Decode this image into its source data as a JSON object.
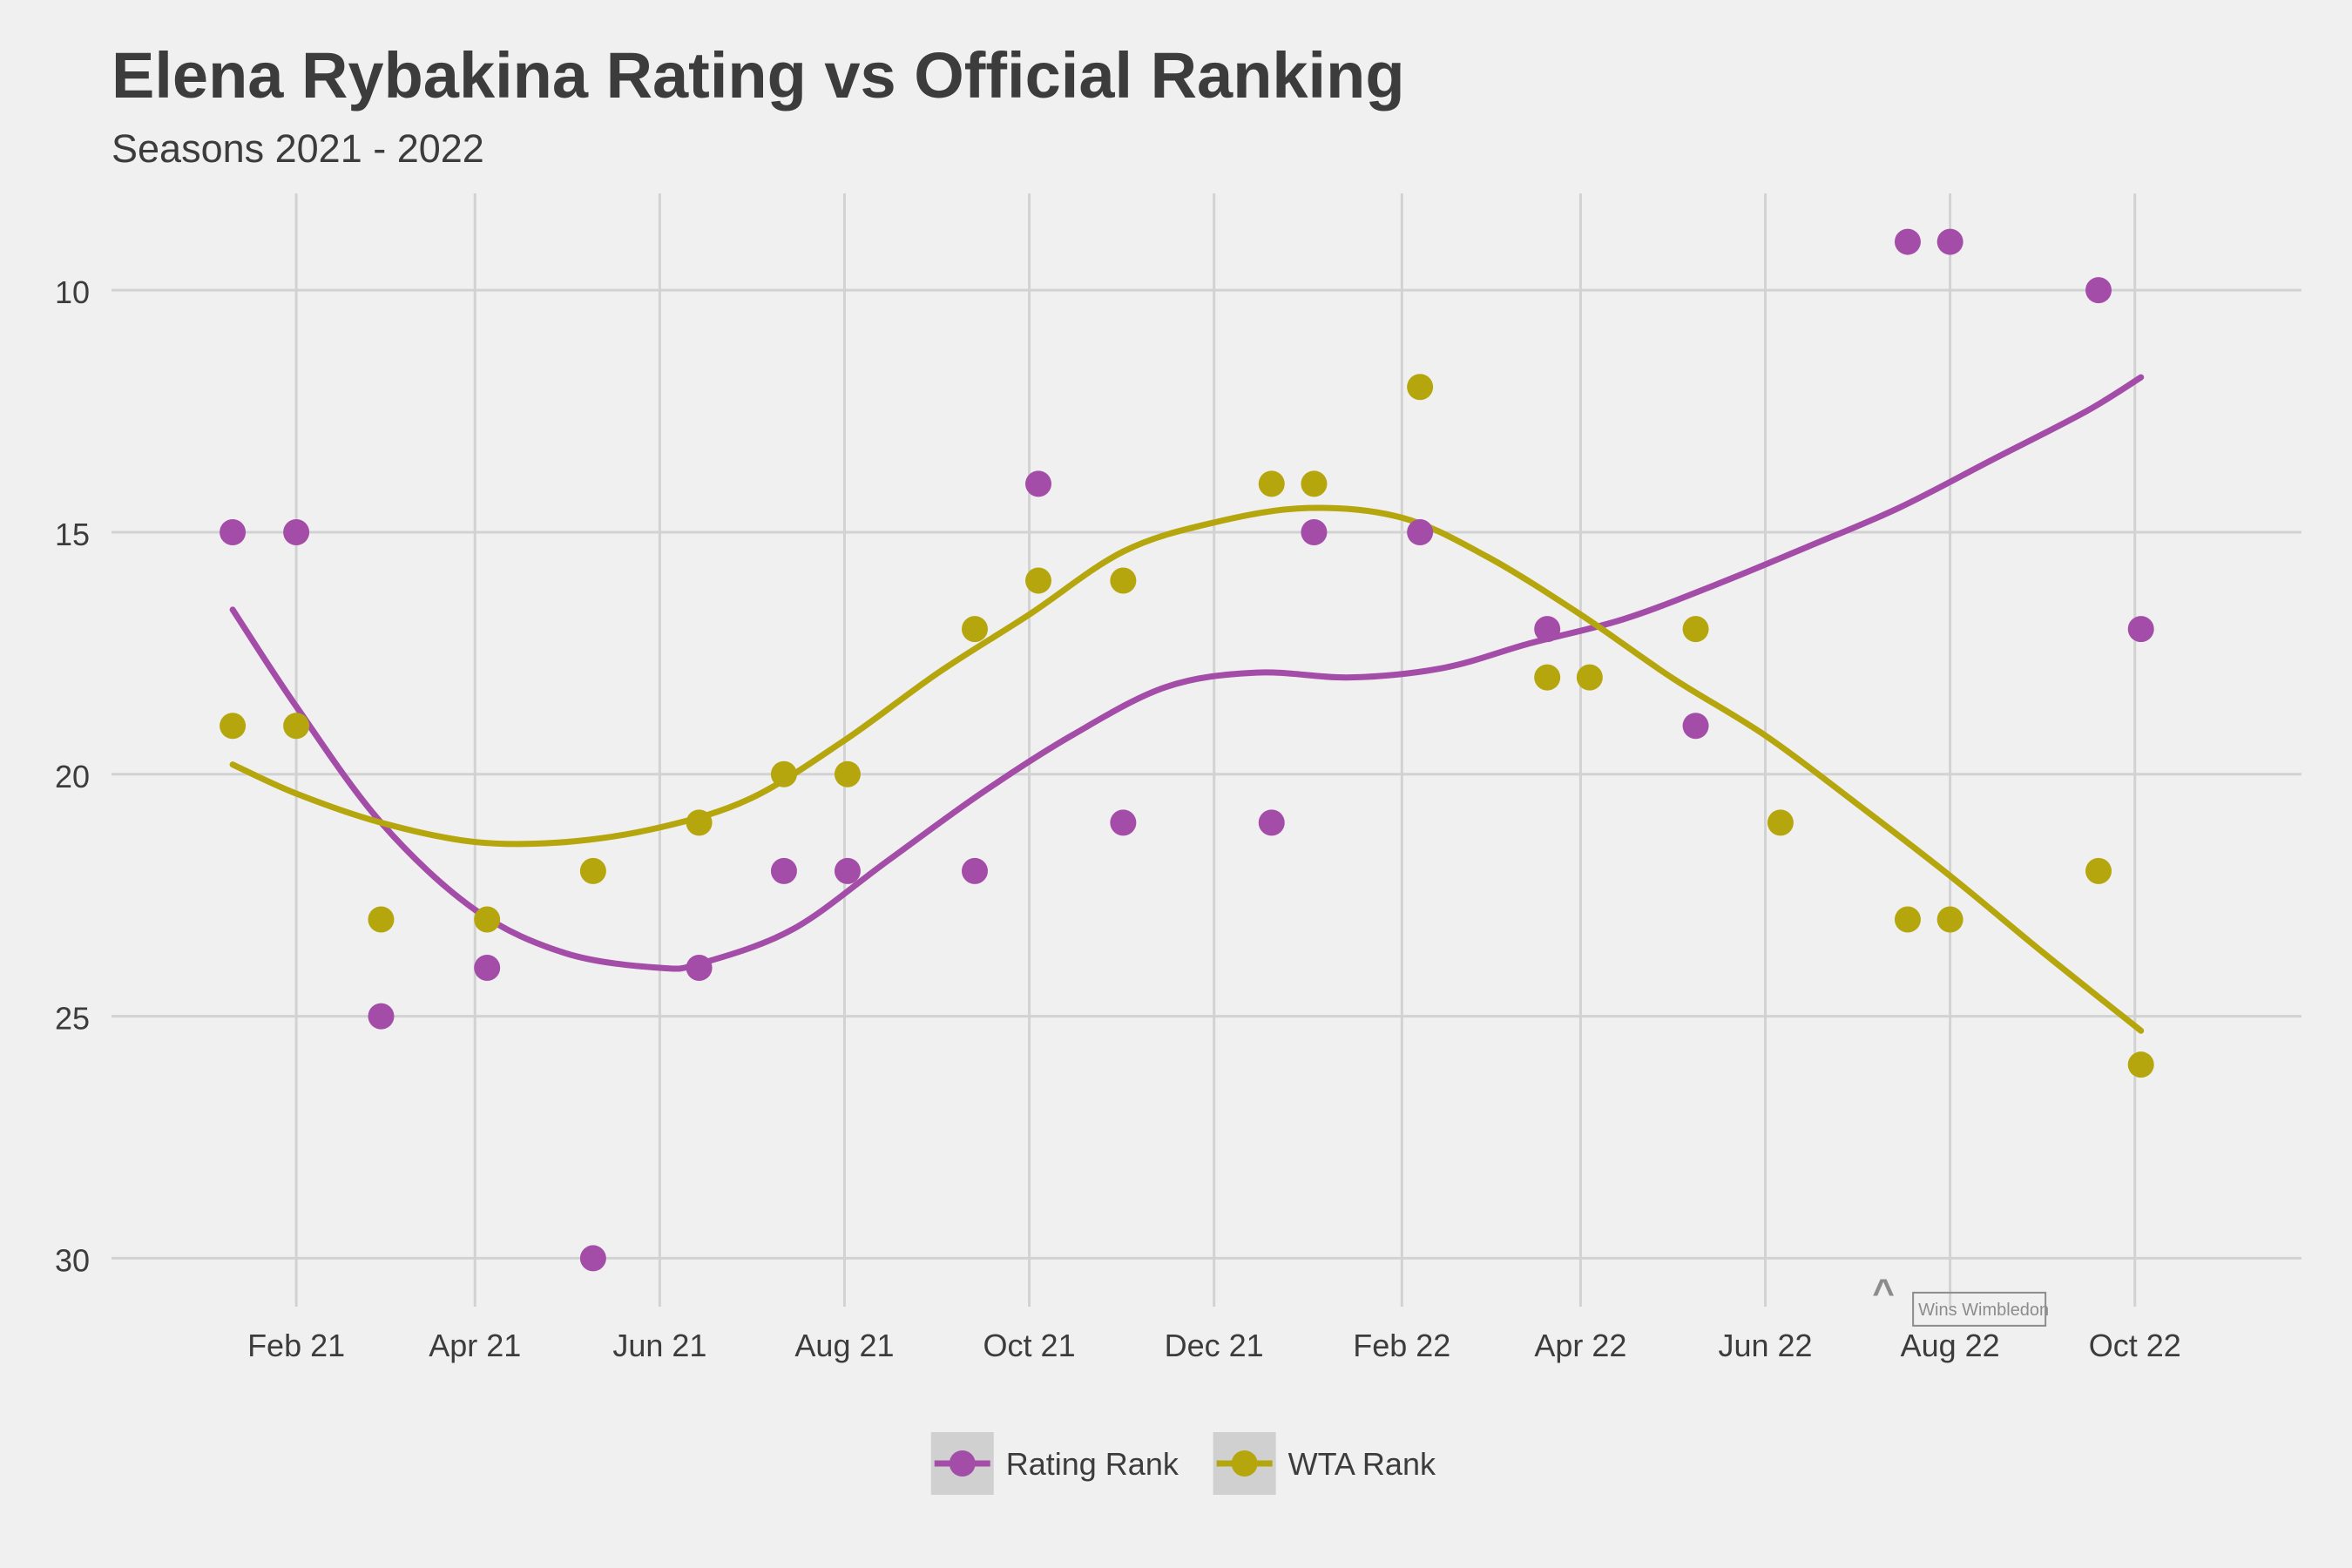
{
  "chart_data": {
    "type": "scatter",
    "title": "Elena Rybakina Rating vs Official Ranking",
    "subtitle": "Seasons 2021 - 2022",
    "xlabel": "",
    "ylabel": "",
    "x_type": "date",
    "xlim": [
      "2020-12-02",
      "2022-11-25"
    ],
    "ylim": [
      31,
      8
    ],
    "y_reversed": true,
    "x_ticks": [
      {
        "date": "2021-02-01",
        "label": "Feb 21"
      },
      {
        "date": "2021-04-01",
        "label": "Apr 21"
      },
      {
        "date": "2021-06-01",
        "label": "Jun 21"
      },
      {
        "date": "2021-08-01",
        "label": "Aug 21"
      },
      {
        "date": "2021-10-01",
        "label": "Oct 21"
      },
      {
        "date": "2021-12-01",
        "label": "Dec 21"
      },
      {
        "date": "2022-02-01",
        "label": "Feb 22"
      },
      {
        "date": "2022-04-01",
        "label": "Apr 22"
      },
      {
        "date": "2022-06-01",
        "label": "Jun 22"
      },
      {
        "date": "2022-08-01",
        "label": "Aug 22"
      },
      {
        "date": "2022-10-01",
        "label": "Oct 22"
      }
    ],
    "y_ticks": [
      10,
      15,
      20,
      25,
      30
    ],
    "grid": true,
    "legend_position": "bottom",
    "series": [
      {
        "name": "Rating Rank",
        "color": "#a44da8",
        "points": [
          {
            "x": "2021-01-11",
            "y": 15
          },
          {
            "x": "2021-02-01",
            "y": 15
          },
          {
            "x": "2021-03-01",
            "y": 25
          },
          {
            "x": "2021-04-05",
            "y": 24
          },
          {
            "x": "2021-05-10",
            "y": 30
          },
          {
            "x": "2021-06-14",
            "y": 24
          },
          {
            "x": "2021-07-12",
            "y": 22
          },
          {
            "x": "2021-08-02",
            "y": 22
          },
          {
            "x": "2021-09-13",
            "y": 22
          },
          {
            "x": "2021-10-04",
            "y": 14
          },
          {
            "x": "2021-11-01",
            "y": 21
          },
          {
            "x": "2021-12-20",
            "y": 21
          },
          {
            "x": "2022-01-03",
            "y": 15
          },
          {
            "x": "2022-02-07",
            "y": 15
          },
          {
            "x": "2022-03-21",
            "y": 17
          },
          {
            "x": "2022-05-09",
            "y": 19
          },
          {
            "x": "2022-07-18",
            "y": 9
          },
          {
            "x": "2022-08-01",
            "y": 9
          },
          {
            "x": "2022-09-19",
            "y": 10
          },
          {
            "x": "2022-10-03",
            "y": 17
          }
        ],
        "smooth": [
          {
            "x": "2021-01-11",
            "y": 16.6
          },
          {
            "x": "2021-02-01",
            "y": 18.6
          },
          {
            "x": "2021-03-01",
            "y": 21.0
          },
          {
            "x": "2021-04-01",
            "y": 22.8
          },
          {
            "x": "2021-05-01",
            "y": 23.7
          },
          {
            "x": "2021-06-01",
            "y": 24.0
          },
          {
            "x": "2021-06-15",
            "y": 23.9
          },
          {
            "x": "2021-07-15",
            "y": 23.2
          },
          {
            "x": "2021-08-15",
            "y": 21.8
          },
          {
            "x": "2021-09-15",
            "y": 20.4
          },
          {
            "x": "2021-10-15",
            "y": 19.2
          },
          {
            "x": "2021-11-15",
            "y": 18.2
          },
          {
            "x": "2021-12-15",
            "y": 17.9
          },
          {
            "x": "2022-01-15",
            "y": 18.0
          },
          {
            "x": "2022-02-15",
            "y": 17.8
          },
          {
            "x": "2022-03-15",
            "y": 17.3
          },
          {
            "x": "2022-04-15",
            "y": 16.8
          },
          {
            "x": "2022-05-15",
            "y": 16.1
          },
          {
            "x": "2022-06-15",
            "y": 15.3
          },
          {
            "x": "2022-07-15",
            "y": 14.5
          },
          {
            "x": "2022-08-15",
            "y": 13.5
          },
          {
            "x": "2022-09-15",
            "y": 12.5
          },
          {
            "x": "2022-10-03",
            "y": 11.8
          }
        ]
      },
      {
        "name": "WTA Rank",
        "color": "#b5a60e",
        "points": [
          {
            "x": "2021-01-11",
            "y": 19
          },
          {
            "x": "2021-02-01",
            "y": 19
          },
          {
            "x": "2021-03-01",
            "y": 23
          },
          {
            "x": "2021-04-05",
            "y": 23
          },
          {
            "x": "2021-05-10",
            "y": 22
          },
          {
            "x": "2021-06-14",
            "y": 21
          },
          {
            "x": "2021-07-12",
            "y": 20
          },
          {
            "x": "2021-08-02",
            "y": 20
          },
          {
            "x": "2021-09-13",
            "y": 17
          },
          {
            "x": "2021-10-04",
            "y": 16
          },
          {
            "x": "2021-11-01",
            "y": 16
          },
          {
            "x": "2021-12-20",
            "y": 14
          },
          {
            "x": "2022-01-03",
            "y": 14
          },
          {
            "x": "2022-02-07",
            "y": 12
          },
          {
            "x": "2022-03-21",
            "y": 18
          },
          {
            "x": "2022-04-04",
            "y": 18
          },
          {
            "x": "2022-05-09",
            "y": 17
          },
          {
            "x": "2022-06-06",
            "y": 21
          },
          {
            "x": "2022-07-18",
            "y": 23
          },
          {
            "x": "2022-08-01",
            "y": 23
          },
          {
            "x": "2022-09-19",
            "y": 22
          },
          {
            "x": "2022-10-03",
            "y": 26
          }
        ],
        "smooth": [
          {
            "x": "2021-01-11",
            "y": 19.8
          },
          {
            "x": "2021-02-01",
            "y": 20.4
          },
          {
            "x": "2021-03-01",
            "y": 21.0
          },
          {
            "x": "2021-04-01",
            "y": 21.4
          },
          {
            "x": "2021-05-01",
            "y": 21.4
          },
          {
            "x": "2021-06-01",
            "y": 21.1
          },
          {
            "x": "2021-07-01",
            "y": 20.5
          },
          {
            "x": "2021-08-01",
            "y": 19.3
          },
          {
            "x": "2021-09-01",
            "y": 17.9
          },
          {
            "x": "2021-10-01",
            "y": 16.7
          },
          {
            "x": "2021-11-01",
            "y": 15.4
          },
          {
            "x": "2021-12-01",
            "y": 14.8
          },
          {
            "x": "2022-01-01",
            "y": 14.5
          },
          {
            "x": "2022-02-01",
            "y": 14.7
          },
          {
            "x": "2022-03-01",
            "y": 15.5
          },
          {
            "x": "2022-04-01",
            "y": 16.7
          },
          {
            "x": "2022-05-01",
            "y": 18.0
          },
          {
            "x": "2022-06-01",
            "y": 19.2
          },
          {
            "x": "2022-07-01",
            "y": 20.6
          },
          {
            "x": "2022-08-01",
            "y": 22.1
          },
          {
            "x": "2022-09-01",
            "y": 23.7
          },
          {
            "x": "2022-10-03",
            "y": 25.3
          }
        ]
      }
    ],
    "annotations": [
      {
        "text": "^",
        "x": "2022-07-10",
        "y": 30.4,
        "color": "#8c8c8c"
      },
      {
        "text": "Wins Wimbledon",
        "x": "2022-07-10",
        "y": 30.8,
        "color": "#8c8c8c",
        "boxed": true
      }
    ]
  }
}
